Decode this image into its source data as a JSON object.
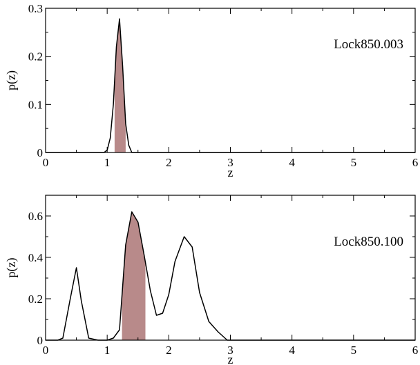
{
  "chart_data": [
    {
      "type": "line",
      "title": "",
      "xlabel": "z",
      "ylabel": "p(z)",
      "annotation": "Lock850.003",
      "xlim": [
        0,
        6
      ],
      "ylim": [
        0,
        0.3
      ],
      "x_ticks": [
        0,
        1,
        2,
        3,
        4,
        5,
        6
      ],
      "x_tick_labels": [
        "0",
        "1",
        "2",
        "3",
        "4",
        "5",
        "6"
      ],
      "y_ticks": [
        0,
        0.1,
        0.2,
        0.3
      ],
      "y_tick_labels": [
        "0",
        "0.1",
        "0.2",
        "0.3"
      ],
      "shade_color": "#b88a8a",
      "line_color": "#000000",
      "shaded_range": [
        1.12,
        1.3
      ],
      "series": [
        {
          "x": [
            0.0,
            0.7,
            0.95,
            1.0,
            1.05,
            1.1,
            1.15,
            1.2,
            1.25,
            1.3,
            1.35,
            1.4,
            6.0
          ],
          "y": [
            0.0,
            0.0,
            0.0,
            0.005,
            0.03,
            0.1,
            0.22,
            0.278,
            0.18,
            0.06,
            0.015,
            0.0,
            0.0
          ]
        }
      ]
    },
    {
      "type": "line",
      "title": "",
      "xlabel": "z",
      "ylabel": "p(z)",
      "annotation": "Lock850.100",
      "xlim": [
        0,
        6
      ],
      "ylim": [
        0,
        0.7
      ],
      "x_ticks": [
        0,
        1,
        2,
        3,
        4,
        5,
        6
      ],
      "x_tick_labels": [
        "0",
        "1",
        "2",
        "3",
        "4",
        "5",
        "6"
      ],
      "y_ticks": [
        0,
        0.2,
        0.4,
        0.6
      ],
      "y_tick_labels": [
        "0",
        "0.2",
        "0.4",
        "0.6"
      ],
      "shade_color": "#b88a8a",
      "line_color": "#000000",
      "shaded_range": [
        1.24,
        1.62
      ],
      "series": [
        {
          "x": [
            0.0,
            0.2,
            0.28,
            0.4,
            0.5,
            0.58,
            0.7,
            0.85,
            1.0,
            1.1,
            1.2,
            1.3,
            1.4,
            1.5,
            1.6,
            1.7,
            1.8,
            1.9,
            2.0,
            2.1,
            2.25,
            2.38,
            2.5,
            2.65,
            2.8,
            2.95,
            3.1,
            6.0
          ],
          "y": [
            0.0,
            0.0,
            0.01,
            0.2,
            0.35,
            0.19,
            0.01,
            0.0,
            0.0,
            0.01,
            0.05,
            0.46,
            0.62,
            0.57,
            0.41,
            0.24,
            0.12,
            0.13,
            0.22,
            0.38,
            0.5,
            0.45,
            0.23,
            0.09,
            0.04,
            0.0,
            0.0,
            0.0
          ]
        }
      ]
    }
  ]
}
